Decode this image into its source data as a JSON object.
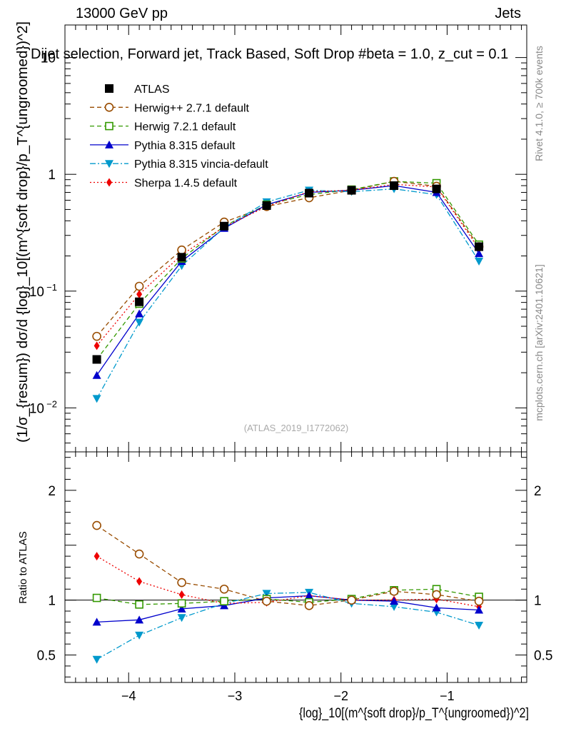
{
  "header": {
    "left": "13000 GeV pp",
    "right": "Jets"
  },
  "side_labels": {
    "rivet": "Rivet 4.1.0, ≥ 700k events",
    "mcplots": "mcplots.cern.ch [arXiv:2401.10621]"
  },
  "chart_data": {
    "type": "line",
    "title": "Dijet selection, Forward jet, Track Based, Soft Drop #beta = 1.0, z_cut = 0.1",
    "watermark": "(ATLAS_2019_I1772062)",
    "xlabel": "{log}_10[(m^{soft drop}/p_T^{ungroomed})^2]",
    "ylabel": "(1/σ_{resum}) dσ/d {log}_10[(m^{soft drop}/p_T^{ungroomed})^2]",
    "ratio_ylabel": "Ratio to ATLAS",
    "x": [
      -4.3,
      -3.9,
      -3.5,
      -3.1,
      -2.7,
      -2.3,
      -1.9,
      -1.5,
      -1.1,
      -0.7
    ],
    "xlim": [
      -4.6,
      -0.25
    ],
    "ylim": [
      0.0042,
      19
    ],
    "yscale": "log",
    "ratio_ylim": [
      0.25,
      2.35
    ],
    "x_ticks": [
      -4,
      -3,
      -2,
      -1
    ],
    "x_tick_labels": [
      "−4",
      "−3",
      "−2",
      "−1"
    ],
    "y_ticks": [
      0.01,
      0.1,
      1,
      10
    ],
    "y_tick_labels": [
      {
        "base": "10",
        "exp": "−2"
      },
      {
        "base": "10",
        "exp": "−1"
      },
      {
        "base": "1",
        "exp": ""
      },
      {
        "base": "10",
        "exp": ""
      }
    ],
    "ratio_ticks": [
      0.5,
      1,
      2
    ],
    "ratio_tick_labels": [
      "0.5",
      "1",
      "2"
    ],
    "series": [
      {
        "name": "ATLAS",
        "color": "#000000",
        "dash": "",
        "marker": "square-filled",
        "values": [
          0.026,
          0.081,
          0.195,
          0.36,
          0.54,
          0.69,
          0.73,
          0.8,
          0.75,
          0.24
        ],
        "ratio": [
          1,
          1,
          1,
          1,
          1,
          1,
          1,
          1,
          1,
          1
        ]
      },
      {
        "name": "Herwig++ 2.7.1 default",
        "color": "#994c00",
        "dash": "6,4",
        "marker": "circle-open",
        "values": [
          0.041,
          0.11,
          0.225,
          0.39,
          0.53,
          0.63,
          0.73,
          0.87,
          0.79,
          0.24
        ],
        "ratio": [
          1.68,
          1.42,
          1.16,
          1.1,
          0.99,
          0.95,
          1.0,
          1.08,
          1.05,
          0.99
        ]
      },
      {
        "name": "Herwig 7.2.1 default",
        "color": "#339900",
        "dash": "6,4",
        "marker": "square-open",
        "values": [
          0.026,
          0.078,
          0.19,
          0.36,
          0.55,
          0.67,
          0.74,
          0.87,
          0.84,
          0.25
        ],
        "ratio": [
          1.02,
          0.96,
          0.97,
          0.99,
          1.01,
          0.98,
          1.01,
          1.09,
          1.1,
          1.03
        ]
      },
      {
        "name": "Pythia 8.315 default",
        "color": "#0000cc",
        "dash": "",
        "marker": "triangle-up",
        "values": [
          0.019,
          0.064,
          0.18,
          0.345,
          0.55,
          0.7,
          0.73,
          0.8,
          0.7,
          0.21
        ],
        "ratio": [
          0.8,
          0.82,
          0.92,
          0.95,
          1.02,
          1.04,
          1.0,
          0.99,
          0.93,
          0.91
        ]
      },
      {
        "name": "Pythia 8.315 vincia-default",
        "color": "#0099cc",
        "dash": "8,3,2,3",
        "marker": "triangle-down",
        "values": [
          0.012,
          0.054,
          0.165,
          0.35,
          0.58,
          0.73,
          0.71,
          0.75,
          0.67,
          0.18
        ],
        "ratio": [
          0.46,
          0.68,
          0.84,
          0.97,
          1.06,
          1.07,
          0.97,
          0.94,
          0.89,
          0.77
        ]
      },
      {
        "name": "Sherpa 1.4.5 default",
        "color": "#ee0000",
        "dash": "2,3",
        "marker": "diamond",
        "values": [
          0.034,
          0.094,
          0.205,
          0.355,
          0.53,
          0.71,
          0.73,
          0.82,
          0.78,
          0.23
        ],
        "ratio": [
          1.4,
          1.17,
          1.05,
          0.97,
          0.98,
          1.04,
          1.0,
          1.0,
          1.01,
          0.94
        ]
      }
    ]
  }
}
